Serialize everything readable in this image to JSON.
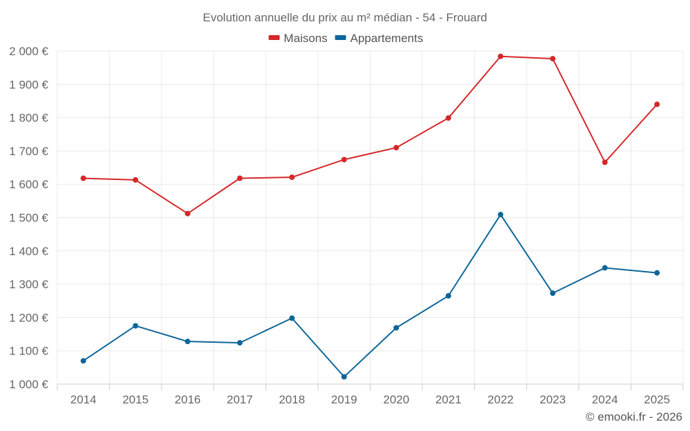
{
  "chart_data": {
    "type": "line",
    "title": "Evolution annuelle du prix au m² médian - 54 - Frouard",
    "categories": [
      "2014",
      "2015",
      "2016",
      "2017",
      "2018",
      "2019",
      "2020",
      "2021",
      "2022",
      "2023",
      "2024",
      "2025"
    ],
    "series": [
      {
        "name": "Maisons",
        "color": "#d62728",
        "values": [
          1618,
          1613,
          1512,
          1618,
          1621,
          1674,
          1710,
          1799,
          1984,
          1977,
          1666,
          1840
        ]
      },
      {
        "name": "Appartements",
        "color": "#0e6699",
        "values": [
          1070,
          1175,
          1128,
          1124,
          1198,
          1022,
          1169,
          1265,
          1509,
          1273,
          1349,
          1334
        ]
      }
    ],
    "ylim": [
      1000,
      2000
    ],
    "yticks": [
      1000,
      1100,
      1200,
      1300,
      1400,
      1500,
      1600,
      1700,
      1800,
      1900,
      2000
    ],
    "ytick_labels": [
      "1 000 €",
      "1 100 €",
      "1 200 €",
      "1 300 €",
      "1 400 €",
      "1 500 €",
      "1 600 €",
      "1 700 €",
      "1 800 €",
      "1 900 €",
      "2 000 €"
    ],
    "xlabel": "",
    "ylabel": "",
    "grid": true,
    "legend_position": "top-center"
  },
  "credit": "© emooki.fr - 2026"
}
